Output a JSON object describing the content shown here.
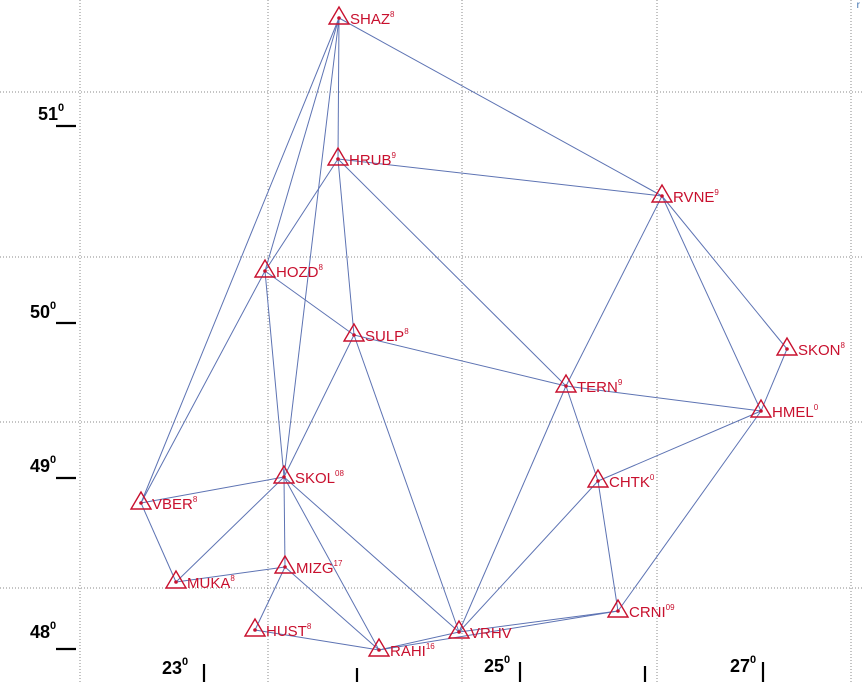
{
  "latitude_labels": [
    {
      "deg": "51",
      "sup": "0"
    },
    {
      "deg": "50",
      "sup": "0"
    },
    {
      "deg": "49",
      "sup": "0"
    },
    {
      "deg": "48",
      "sup": "0"
    }
  ],
  "longitude_labels": [
    {
      "deg": "23",
      "sup": "0"
    },
    {
      "deg": "25",
      "sup": "0"
    },
    {
      "deg": "27",
      "sup": "0"
    }
  ],
  "corner_mark": "r",
  "stations": [
    {
      "name": "SHAZ",
      "sup": "8"
    },
    {
      "name": "HRUB",
      "sup": "9"
    },
    {
      "name": "RVNE",
      "sup": "9"
    },
    {
      "name": "HOZD",
      "sup": "8"
    },
    {
      "name": "SULP",
      "sup": "8"
    },
    {
      "name": "SKON",
      "sup": "8"
    },
    {
      "name": "TERN",
      "sup": "9"
    },
    {
      "name": "HMEL",
      "sup": "0"
    },
    {
      "name": "SKOL",
      "sup": "08"
    },
    {
      "name": "VBER",
      "sup": "8"
    },
    {
      "name": "CHTK",
      "sup": "0"
    },
    {
      "name": "MUKA",
      "sup": "8"
    },
    {
      "name": "MIZG",
      "sup": "17"
    },
    {
      "name": "CRNI",
      "sup": "09"
    },
    {
      "name": "HUST",
      "sup": "8"
    },
    {
      "name": "VRHV",
      "sup": ""
    },
    {
      "name": "RAHI",
      "sup": "16"
    }
  ],
  "links": [
    [
      "SHAZ",
      "HRUB"
    ],
    [
      "SHAZ",
      "RVNE"
    ],
    [
      "SHAZ",
      "HOZD"
    ],
    [
      "SHAZ",
      "VBER"
    ],
    [
      "SHAZ",
      "SKOL"
    ],
    [
      "HRUB",
      "RVNE"
    ],
    [
      "HRUB",
      "HOZD"
    ],
    [
      "HRUB",
      "SULP"
    ],
    [
      "HRUB",
      "TERN"
    ],
    [
      "RVNE",
      "TERN"
    ],
    [
      "RVNE",
      "HMEL"
    ],
    [
      "RVNE",
      "SKON"
    ],
    [
      "HOZD",
      "SULP"
    ],
    [
      "HOZD",
      "VBER"
    ],
    [
      "HOZD",
      "SKOL"
    ],
    [
      "SULP",
      "TERN"
    ],
    [
      "SULP",
      "SKOL"
    ],
    [
      "SULP",
      "VRHV"
    ],
    [
      "SKON",
      "HMEL"
    ],
    [
      "TERN",
      "HMEL"
    ],
    [
      "TERN",
      "CHTK"
    ],
    [
      "TERN",
      "VRHV"
    ],
    [
      "HMEL",
      "CHTK"
    ],
    [
      "HMEL",
      "CRNI"
    ],
    [
      "SKOL",
      "VBER"
    ],
    [
      "SKOL",
      "MUKA"
    ],
    [
      "SKOL",
      "MIZG"
    ],
    [
      "SKOL",
      "RAHI"
    ],
    [
      "SKOL",
      "VRHV"
    ],
    [
      "VBER",
      "MUKA"
    ],
    [
      "CHTK",
      "CRNI"
    ],
    [
      "CHTK",
      "VRHV"
    ],
    [
      "MUKA",
      "MIZG"
    ],
    [
      "MIZG",
      "HUST"
    ],
    [
      "MIZG",
      "RAHI"
    ],
    [
      "CRNI",
      "VRHV"
    ],
    [
      "CRNI",
      "RAHI"
    ],
    [
      "HUST",
      "RAHI"
    ],
    [
      "RAHI",
      "VRHV"
    ]
  ]
}
